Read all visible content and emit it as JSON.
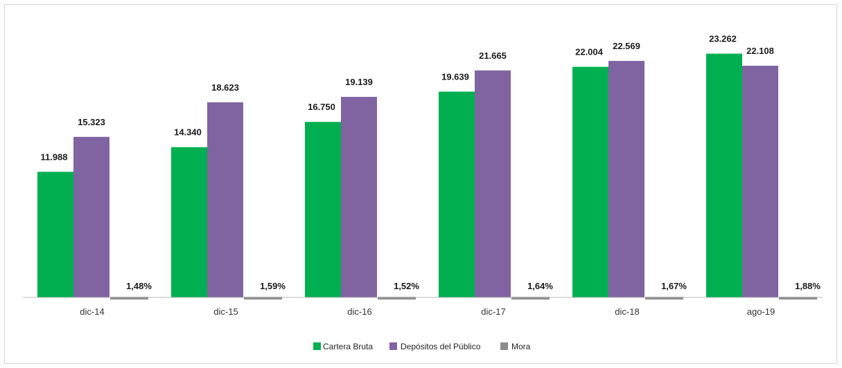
{
  "chart_data": {
    "type": "bar",
    "title": "",
    "xlabel": "",
    "ylabel": "",
    "categories": [
      "dic-14",
      "dic-15",
      "dic-16",
      "dic-17",
      "dic-18",
      "ago-19"
    ],
    "series": [
      {
        "name": "Cartera Bruta",
        "color": "#00b050",
        "values": [
          11988,
          14340,
          16750,
          19639,
          22004,
          23262
        ],
        "labels": [
          "11.988",
          "14.340",
          "16.750",
          "19.639",
          "22.004",
          "23.262"
        ]
      },
      {
        "name": "Depósitos del Público",
        "color": "#8064a2",
        "values": [
          15323,
          18623,
          19139,
          21665,
          22569,
          22108
        ],
        "labels": [
          "15.323",
          "18.623",
          "19.139",
          "21.665",
          "22.569",
          "22.108"
        ]
      },
      {
        "name": "Mora",
        "color": "#8c8c8c",
        "values": [
          1.48,
          1.59,
          1.52,
          1.64,
          1.67,
          1.88
        ],
        "labels": [
          "1,48%",
          "1,59%",
          "1,52%",
          "1,64%",
          "1,67%",
          "1,88%"
        ]
      }
    ],
    "ylim": [
      0,
      25000
    ],
    "grid": false,
    "legend": "bottom-center"
  }
}
